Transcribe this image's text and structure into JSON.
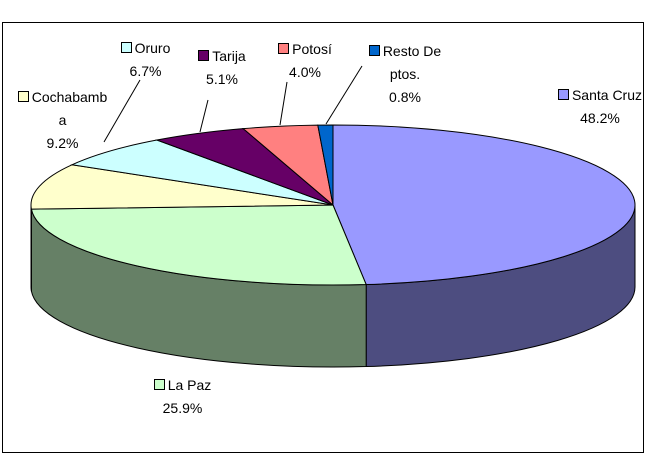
{
  "chart_data": {
    "type": "pie3d",
    "categories": [
      "Santa Cruz",
      "La Paz",
      "Cochabamba",
      "Oruro",
      "Tarija",
      "Potosí",
      "Resto Deptos."
    ],
    "values": [
      48.2,
      25.9,
      9.2,
      6.7,
      5.1,
      4.0,
      0.8
    ],
    "value_labels": [
      "48.2%",
      "25.9%",
      "9.2%",
      "6.7%",
      "5.1%",
      "4.0%",
      "0.8%"
    ],
    "colors": [
      "#9999ff",
      "#ccffcc",
      "#ffffcc",
      "#ccffff",
      "#660066",
      "#ff8080",
      "#0066cc"
    ]
  }
}
